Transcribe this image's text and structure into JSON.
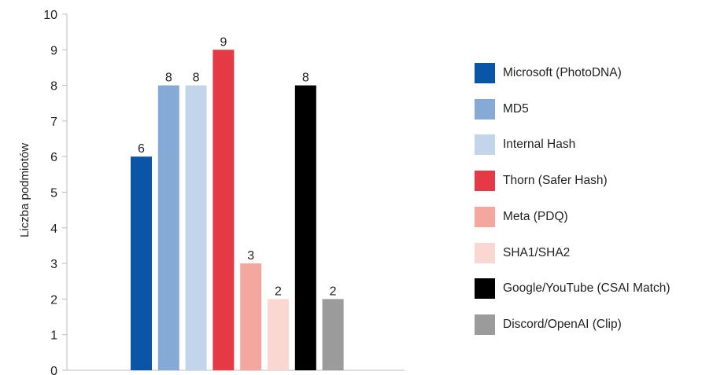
{
  "chart_data": {
    "type": "bar",
    "title": "",
    "xlabel": "",
    "ylabel": "Liczba podmiotów",
    "ylim": [
      0,
      10
    ],
    "yticks": [
      0,
      1,
      2,
      3,
      4,
      5,
      6,
      7,
      8,
      9,
      10
    ],
    "grid": false,
    "legend_position": "right",
    "series": [
      {
        "name": "Microsoft (PhotoDNA)",
        "value": 6,
        "color": "#0b55a8"
      },
      {
        "name": "MD5",
        "value": 8,
        "color": "#86aad6"
      },
      {
        "name": "Internal Hash",
        "value": 8,
        "color": "#c3d5eb"
      },
      {
        "name": "Thorn (Safer Hash)",
        "value": 9,
        "color": "#e63946"
      },
      {
        "name": "Meta (PDQ)",
        "value": 3,
        "color": "#f4a79f"
      },
      {
        "name": "SHA1/SHA2",
        "value": 2,
        "color": "#fbd7d2"
      },
      {
        "name": "Google/YouTube (CSAI Match)",
        "value": 8,
        "color": "#000000"
      },
      {
        "name": "Discord/OpenAI (Clip)",
        "value": 2,
        "color": "#9b9b9b"
      }
    ]
  }
}
